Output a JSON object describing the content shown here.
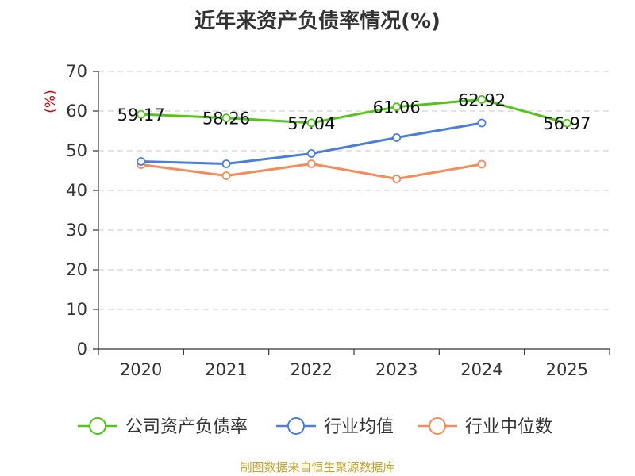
{
  "source": "制图数据来自恒生聚源数据库",
  "chart_data": {
    "type": "line",
    "title": "近年来资产负债率情况(%)",
    "ylabel": "(%)",
    "xlabel": "",
    "categories": [
      "2020",
      "2021",
      "2022",
      "2023",
      "2024",
      "2025"
    ],
    "ylim": [
      0,
      70
    ],
    "yticks": [
      0,
      10,
      20,
      30,
      40,
      50,
      60,
      70
    ],
    "grid": true,
    "legend_position": "bottom",
    "series": [
      {
        "name": "公司资产负债率",
        "color": "#52c41a",
        "values": [
          59.17,
          58.26,
          57.04,
          61.06,
          62.92,
          56.97
        ],
        "labels": [
          "59.17",
          "58.26",
          "57.04",
          "61.06",
          "62.92",
          "56.97"
        ]
      },
      {
        "name": "行业均值",
        "color": "#4a7fd6",
        "values": [
          47.3,
          46.7,
          49.3,
          53.3,
          57.0,
          null
        ],
        "labels": []
      },
      {
        "name": "行业中位数",
        "color": "#f58a5a",
        "values": [
          46.5,
          43.7,
          46.7,
          42.9,
          46.6,
          null
        ],
        "labels": []
      }
    ]
  }
}
